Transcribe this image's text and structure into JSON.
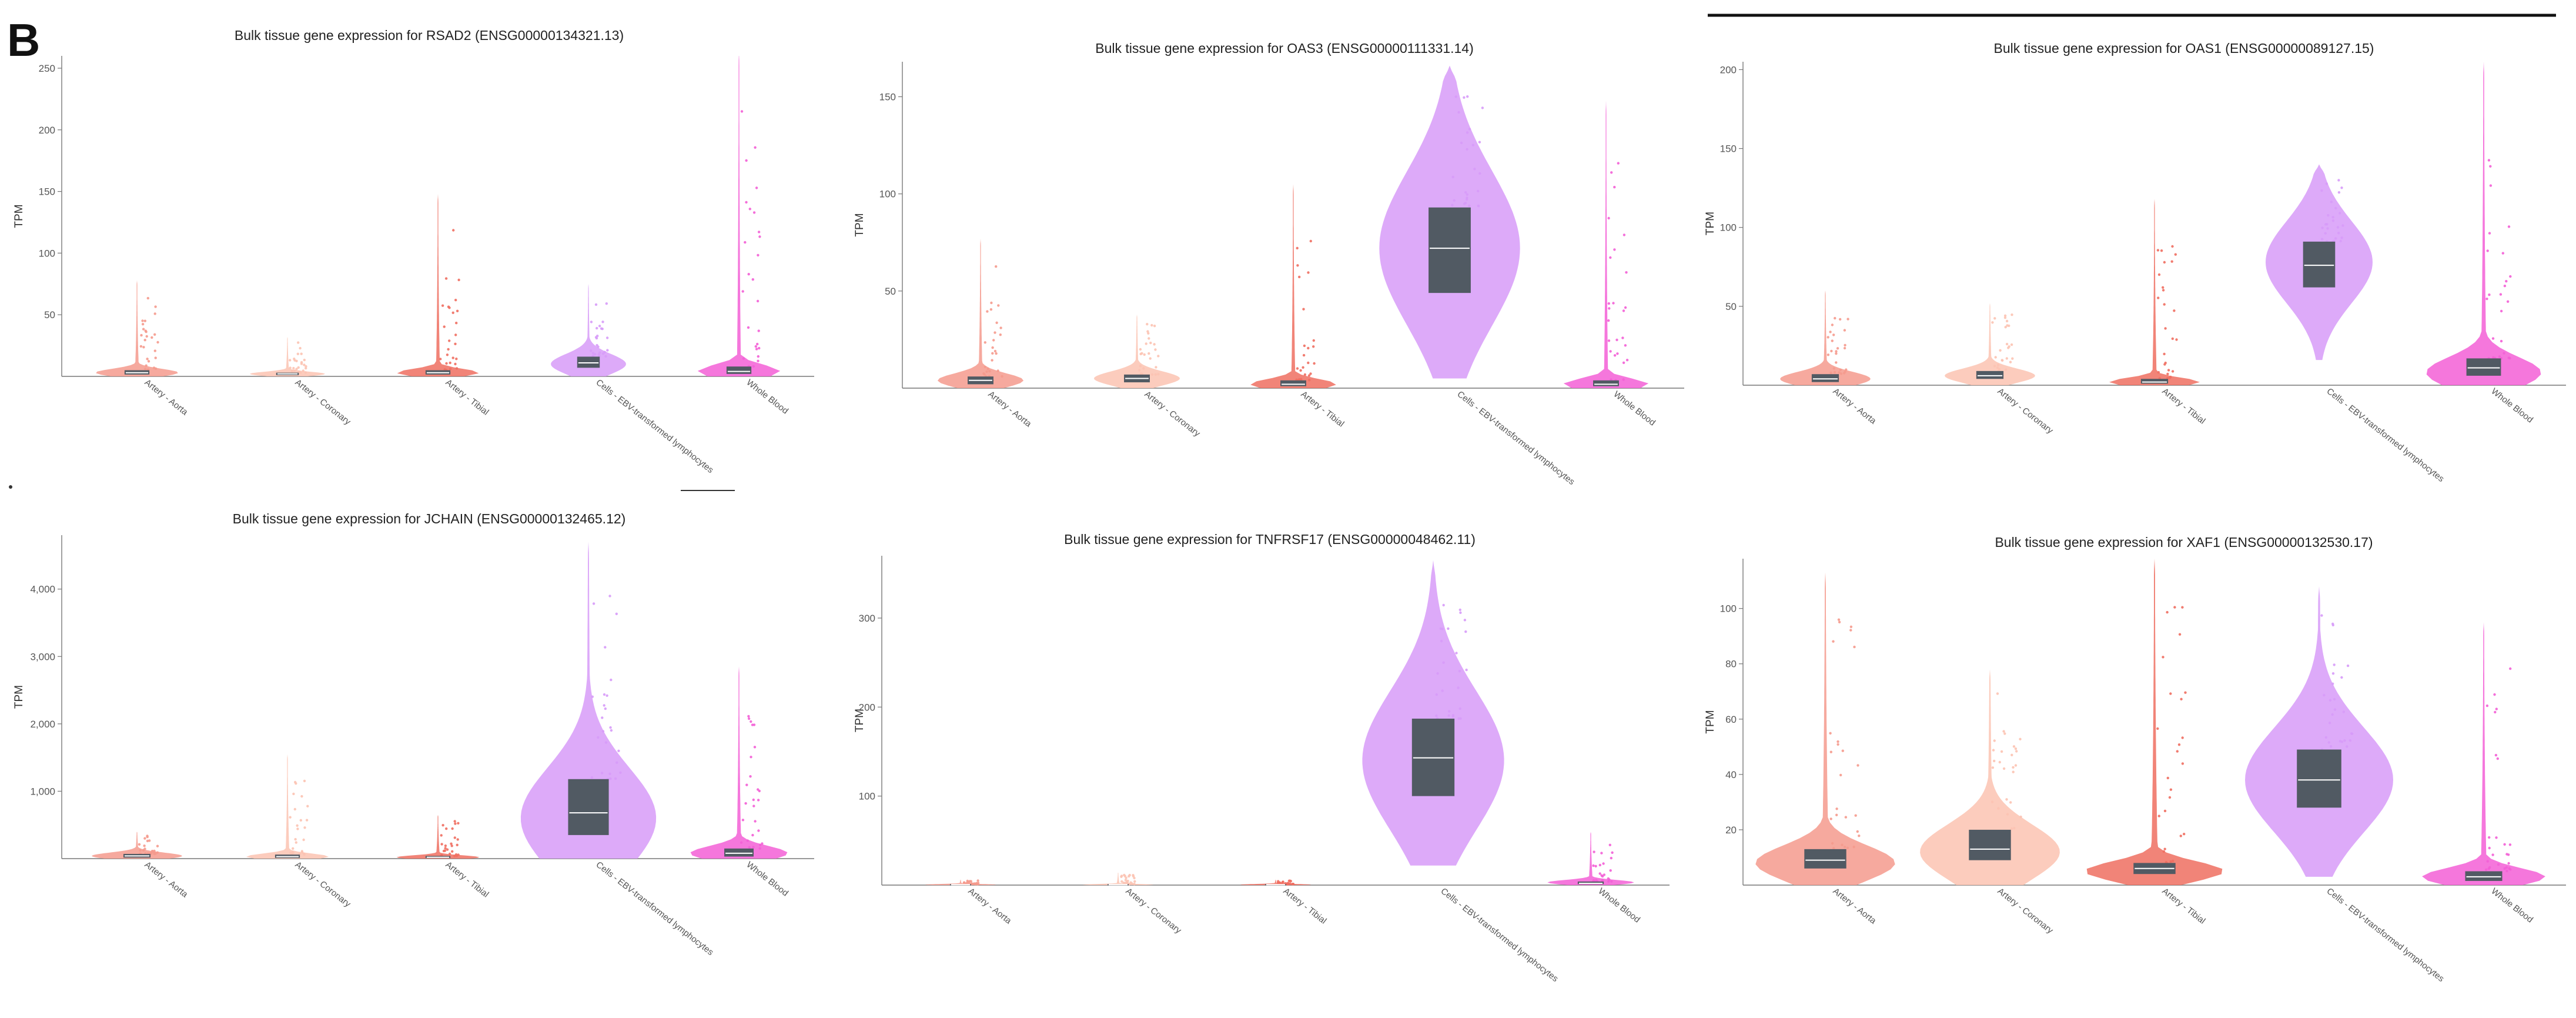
{
  "figure_label": "B",
  "colors": {
    "Artery - Aorta": "#f59a8d",
    "Artery - Coronary": "#fcc3b2",
    "Artery - Tibial": "#ef6e60",
    "Cells - EBV-transformed lymphocytes": "#d79bf8",
    "Whole Blood": "#f35fd6",
    "box": "#515a63",
    "median": "#ffffff"
  },
  "chart_data": [
    {
      "type": "violin",
      "title": "Bulk tissue gene expression for RSAD2 (ENSG00000134321.13)",
      "ylabel": "TPM",
      "ylim": [
        0,
        260
      ],
      "yticks": [
        50,
        100,
        150,
        200,
        250
      ],
      "ytick_labels": [
        "50",
        "100",
        "150",
        "200",
        "250"
      ],
      "categories": [
        "Artery - Aorta",
        "Artery - Coronary",
        "Artery - Tibial",
        "Cells - EBV-transformed lymphocytes",
        "Whole Blood"
      ],
      "series": [
        {
          "name": "Artery - Aorta",
          "median": 3,
          "q1": 1.5,
          "q3": 5,
          "max": 78,
          "peak": 3,
          "width": 0.55
        },
        {
          "name": "Artery - Coronary",
          "median": 2,
          "q1": 1,
          "q3": 3,
          "max": 32,
          "peak": 2,
          "width": 0.5
        },
        {
          "name": "Artery - Tibial",
          "median": 3,
          "q1": 1.5,
          "q3": 5,
          "max": 148,
          "peak": 3,
          "width": 0.55
        },
        {
          "name": "Cells - EBV-transformed lymphocytes",
          "median": 11,
          "q1": 7,
          "q3": 16,
          "max": 75,
          "peak": 10,
          "width": 0.5
        },
        {
          "name": "Whole Blood",
          "median": 4,
          "q1": 2,
          "q3": 8,
          "max": 265,
          "peak": 4,
          "width": 0.55
        }
      ]
    },
    {
      "type": "violin",
      "title": "Bulk tissue gene expression for OAS3 (ENSG00000111331.14)",
      "ylabel": "TPM",
      "ylim": [
        0,
        168
      ],
      "yticks": [
        50,
        100,
        150
      ],
      "ytick_labels": [
        "50",
        "100",
        "150"
      ],
      "categories": [
        "Artery - Aorta",
        "Artery - Coronary",
        "Artery - Tibial",
        "Cells - EBV-transformed lymphocytes",
        "Whole Blood"
      ],
      "series": [
        {
          "name": "Artery - Aorta",
          "median": 4,
          "q1": 2,
          "q3": 6,
          "max": 77,
          "peak": 4,
          "width": 0.55
        },
        {
          "name": "Artery - Coronary",
          "median": 5,
          "q1": 3,
          "q3": 7,
          "max": 38,
          "peak": 5,
          "width": 0.55
        },
        {
          "name": "Artery - Tibial",
          "median": 2,
          "q1": 1,
          "q3": 4,
          "max": 105,
          "peak": 2,
          "width": 0.55
        },
        {
          "name": "Cells - EBV-transformed lymphocytes",
          "median": 72,
          "q1": 49,
          "q3": 93,
          "max": 166,
          "min": 5,
          "peak": 72,
          "width": 0.9
        },
        {
          "name": "Whole Blood",
          "median": 2,
          "q1": 1,
          "q3": 4,
          "max": 148,
          "peak": 2,
          "width": 0.55
        }
      ]
    },
    {
      "type": "violin",
      "title": "Bulk tissue gene expression for OAS1 (ENSG00000089127.15)",
      "ylabel": "TPM",
      "ylim": [
        0,
        205
      ],
      "yticks": [
        50,
        100,
        150,
        200
      ],
      "ytick_labels": [
        "50",
        "100",
        "150",
        "200"
      ],
      "categories": [
        "Artery - Aorta",
        "Artery - Coronary",
        "Artery - Tibial",
        "Cells - EBV-transformed lymphocytes",
        "Whole Blood"
      ],
      "series": [
        {
          "name": "Artery - Aorta",
          "median": 4,
          "q1": 2,
          "q3": 7,
          "max": 60,
          "peak": 4,
          "width": 0.55
        },
        {
          "name": "Artery - Coronary",
          "median": 6,
          "q1": 4,
          "q3": 9,
          "max": 52,
          "peak": 6,
          "width": 0.55
        },
        {
          "name": "Artery - Tibial",
          "median": 2,
          "q1": 1,
          "q3": 4,
          "max": 118,
          "peak": 2,
          "width": 0.55
        },
        {
          "name": "Cells - EBV-transformed lymphocytes",
          "median": 76,
          "q1": 62,
          "q3": 91,
          "max": 140,
          "min": 16,
          "peak": 78,
          "width": 0.65
        },
        {
          "name": "Whole Blood",
          "median": 11,
          "q1": 6,
          "q3": 17,
          "max": 205,
          "peak": 8,
          "width": 0.7
        }
      ]
    },
    {
      "type": "violin",
      "title": "Bulk tissue gene expression for JCHAIN (ENSG00000132465.12)",
      "ylabel": "TPM",
      "ylim": [
        0,
        4800
      ],
      "yticks": [
        1000,
        2000,
        3000,
        4000
      ],
      "ytick_labels": [
        "1,000",
        "2,000",
        "3,000",
        "4,000"
      ],
      "categories": [
        "Artery - Aorta",
        "Artery - Coronary",
        "Artery - Tibial",
        "Cells - EBV-transformed lymphocytes",
        "Whole Blood"
      ],
      "series": [
        {
          "name": "Artery - Aorta",
          "median": 40,
          "q1": 15,
          "q3": 70,
          "max": 400,
          "peak": 40,
          "width": 0.6
        },
        {
          "name": "Artery - Coronary",
          "median": 30,
          "q1": 10,
          "q3": 60,
          "max": 1550,
          "peak": 30,
          "width": 0.55
        },
        {
          "name": "Artery - Tibial",
          "median": 20,
          "q1": 8,
          "q3": 40,
          "max": 650,
          "peak": 20,
          "width": 0.55
        },
        {
          "name": "Cells - EBV-transformed lymphocytes",
          "median": 680,
          "q1": 350,
          "q3": 1180,
          "max": 4700,
          "min": 0,
          "peak": 600,
          "width": 0.9
        },
        {
          "name": "Whole Blood",
          "median": 80,
          "q1": 30,
          "q3": 150,
          "max": 2850,
          "peak": 80,
          "width": 0.65
        }
      ]
    },
    {
      "type": "violin",
      "title": "Bulk tissue gene expression for TNFRSF17 (ENSG00000048462.11)",
      "ylabel": "TPM",
      "ylim": [
        0,
        370
      ],
      "yticks": [
        100,
        200,
        300
      ],
      "ytick_labels": [
        "100",
        "200",
        "300"
      ],
      "categories": [
        "Artery - Aorta",
        "Artery - Coronary",
        "Artery - Tibial",
        "Cells - EBV-transformed lymphocytes",
        "Whole Blood"
      ],
      "series": [
        {
          "name": "Artery - Aorta",
          "median": 0.5,
          "q1": 0.2,
          "q3": 1,
          "max": 6,
          "peak": 0.5,
          "width": 0.45
        },
        {
          "name": "Artery - Coronary",
          "median": 0.5,
          "q1": 0.2,
          "q3": 1,
          "max": 14,
          "peak": 0.5,
          "width": 0.45
        },
        {
          "name": "Artery - Tibial",
          "median": 0.5,
          "q1": 0.2,
          "q3": 1,
          "max": 6,
          "peak": 0.5,
          "width": 0.45
        },
        {
          "name": "Cells - EBV-transformed lymphocytes",
          "median": 143,
          "q1": 100,
          "q3": 187,
          "max": 365,
          "min": 22,
          "peak": 140,
          "width": 0.9
        },
        {
          "name": "Whole Blood",
          "median": 2,
          "q1": 1,
          "q3": 4,
          "max": 60,
          "peak": 3,
          "width": 0.55
        }
      ]
    },
    {
      "type": "violin",
      "title": "Bulk tissue gene expression for XAF1 (ENSG00000132530.17)",
      "ylabel": "TPM",
      "ylim": [
        0,
        118
      ],
      "yticks": [
        20,
        40,
        60,
        80,
        100
      ],
      "ytick_labels": [
        "20",
        "40",
        "60",
        "80",
        "100"
      ],
      "categories": [
        "Artery - Aorta",
        "Artery - Coronary",
        "Artery - Tibial",
        "Cells - EBV-transformed lymphocytes",
        "Whole Blood"
      ],
      "series": [
        {
          "name": "Artery - Aorta",
          "median": 9,
          "q1": 6,
          "q3": 13,
          "max": 113,
          "peak": 8,
          "width": 0.85
        },
        {
          "name": "Artery - Coronary",
          "median": 13,
          "q1": 9,
          "q3": 20,
          "max": 78,
          "peak": 12,
          "width": 0.85
        },
        {
          "name": "Artery - Tibial",
          "median": 6,
          "q1": 4,
          "q3": 8,
          "max": 118,
          "peak": 5,
          "width": 0.85
        },
        {
          "name": "Cells - EBV-transformed lymphocytes",
          "median": 38,
          "q1": 28,
          "q3": 49,
          "max": 108,
          "min": 3,
          "peak": 38,
          "width": 0.9
        },
        {
          "name": "Whole Blood",
          "median": 3,
          "q1": 1.5,
          "q3": 5,
          "max": 95,
          "peak": 3,
          "width": 0.75
        }
      ]
    }
  ]
}
